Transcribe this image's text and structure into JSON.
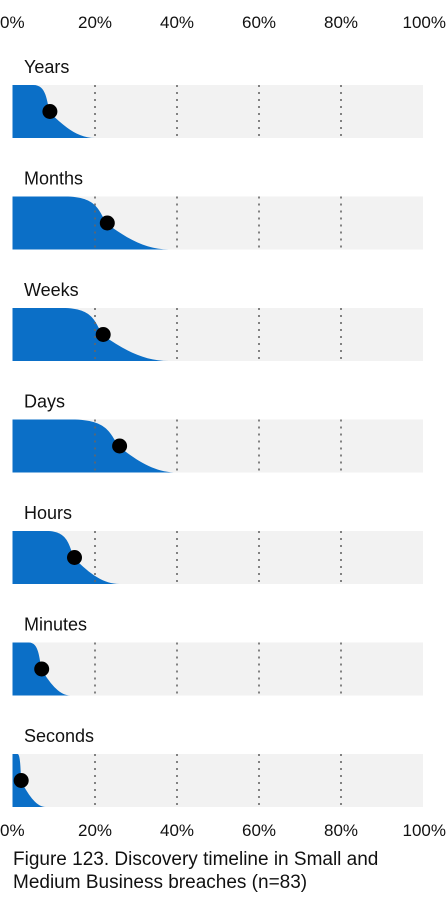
{
  "chart_data": {
    "type": "area",
    "caption": "Figure 123. Discovery timeline in Small and Medium Business breaches (n=83)",
    "x_ticks": [
      "0%",
      "20%",
      "40%",
      "60%",
      "80%",
      "100%"
    ],
    "xlim": [
      0,
      100
    ],
    "grid": true,
    "colors": {
      "area": "#0b6fc7",
      "dot": "#000000",
      "track": "#f2f2f2",
      "grid": "#666666"
    },
    "series": [
      {
        "name": "Years",
        "value": 9,
        "area_end": 20
      },
      {
        "name": "Months",
        "value": 23,
        "area_end": 38
      },
      {
        "name": "Weeks",
        "value": 22,
        "area_end": 38
      },
      {
        "name": "Days",
        "value": 26,
        "area_end": 40
      },
      {
        "name": "Hours",
        "value": 15,
        "area_end": 26
      },
      {
        "name": "Minutes",
        "value": 7,
        "area_end": 14
      },
      {
        "name": "Seconds",
        "value": 2,
        "area_end": 8
      }
    ]
  }
}
